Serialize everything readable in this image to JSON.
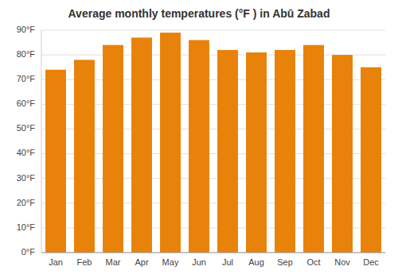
{
  "chart_data": {
    "type": "bar",
    "title": "Average monthly temperatures (°F ) in Abū Zabad",
    "categories": [
      "Jan",
      "Feb",
      "Mar",
      "Apr",
      "May",
      "Jun",
      "Jul",
      "Aug",
      "Sep",
      "Oct",
      "Nov",
      "Dec"
    ],
    "values": [
      74,
      78,
      84,
      87,
      89,
      86,
      82,
      81,
      82,
      84,
      80,
      75
    ],
    "color": "#E8820A",
    "ylim": [
      0,
      90
    ],
    "yticks": [
      {
        "value": 0,
        "label": "0°F"
      },
      {
        "value": 10,
        "label": "10°F"
      },
      {
        "value": 20,
        "label": "20°F"
      },
      {
        "value": 30,
        "label": "30°F"
      },
      {
        "value": 40,
        "label": "40°F"
      },
      {
        "value": 50,
        "label": "50°F"
      },
      {
        "value": 60,
        "label": "60°F"
      },
      {
        "value": 70,
        "label": "70°F"
      },
      {
        "value": 80,
        "label": "80°F"
      },
      {
        "value": 90,
        "label": "90°F"
      }
    ],
    "grid": true
  }
}
